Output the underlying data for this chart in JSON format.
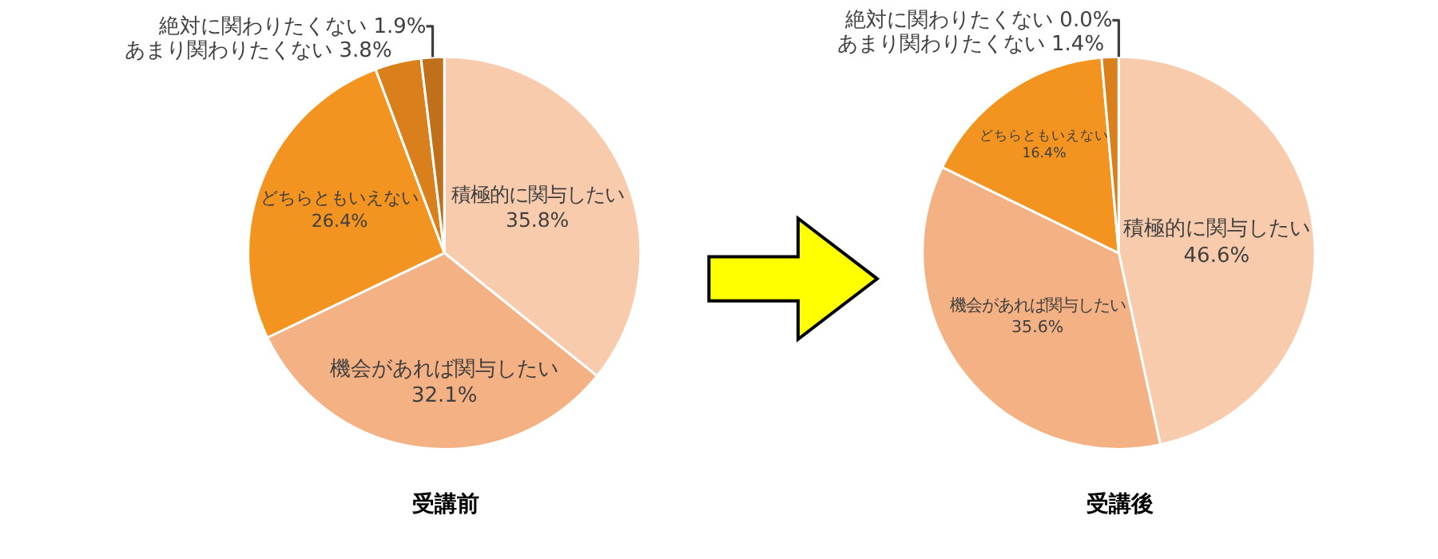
{
  "chart_data": [
    {
      "type": "pie",
      "title": "受講前",
      "categories": [
        "積極的に関与したい",
        "機会があれば関与したい",
        "どちらともいえない",
        "あまり関わりたくない",
        "絶対に関わりたくない"
      ],
      "values": [
        35.8,
        32.1,
        26.4,
        3.8,
        1.9
      ],
      "value_labels": [
        "35.8%",
        "32.1%",
        "26.4%",
        "3.8%",
        "1.9%"
      ],
      "colors": [
        "#f8cbad",
        "#f4b183",
        "#f39320",
        "#d9801c",
        "#c0701a"
      ]
    },
    {
      "type": "pie",
      "title": "受講後",
      "categories": [
        "積極的に関与したい",
        "機会があれば関与したい",
        "どちらともいえない",
        "あまり関わりたくない",
        "絶対に関わりたくない"
      ],
      "values": [
        46.6,
        35.6,
        16.4,
        1.4,
        0.0
      ],
      "value_labels": [
        "46.6%",
        "35.6%",
        "16.4%",
        "1.4%",
        "0.0%"
      ],
      "colors": [
        "#f8cbad",
        "#f4b183",
        "#f39320",
        "#d9801c",
        "#c0701a"
      ]
    }
  ]
}
